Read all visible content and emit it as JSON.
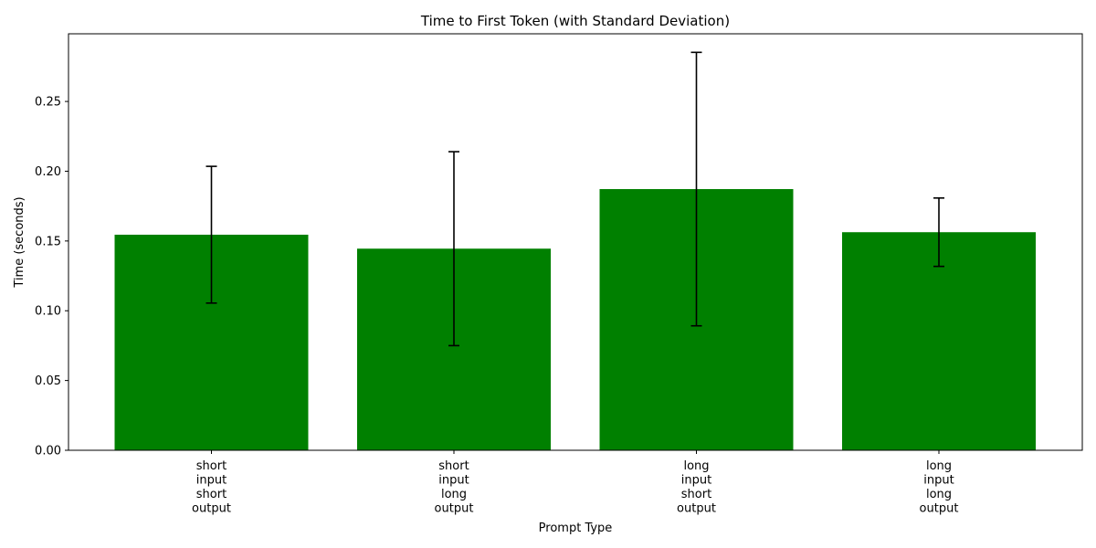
{
  "chart_data": {
    "type": "bar",
    "title": "Time to First Token (with Standard Deviation)",
    "xlabel": "Prompt Type",
    "ylabel": "Time (seconds)",
    "categories": [
      [
        "short",
        "input",
        "short",
        "output"
      ],
      [
        "short",
        "input",
        "long",
        "output"
      ],
      [
        "long",
        "input",
        "short",
        "output"
      ],
      [
        "long",
        "input",
        "long",
        "output"
      ]
    ],
    "values": [
      0.1545,
      0.1445,
      0.1872,
      0.1563
    ],
    "std": [
      0.049,
      0.0695,
      0.098,
      0.0245
    ],
    "ylim": [
      0,
      0.2985
    ],
    "yticks": [
      "0.00",
      "0.05",
      "0.10",
      "0.15",
      "0.20",
      "0.25"
    ],
    "grid": false,
    "bar_color": "#008000",
    "errorbar_color": "#000000"
  }
}
